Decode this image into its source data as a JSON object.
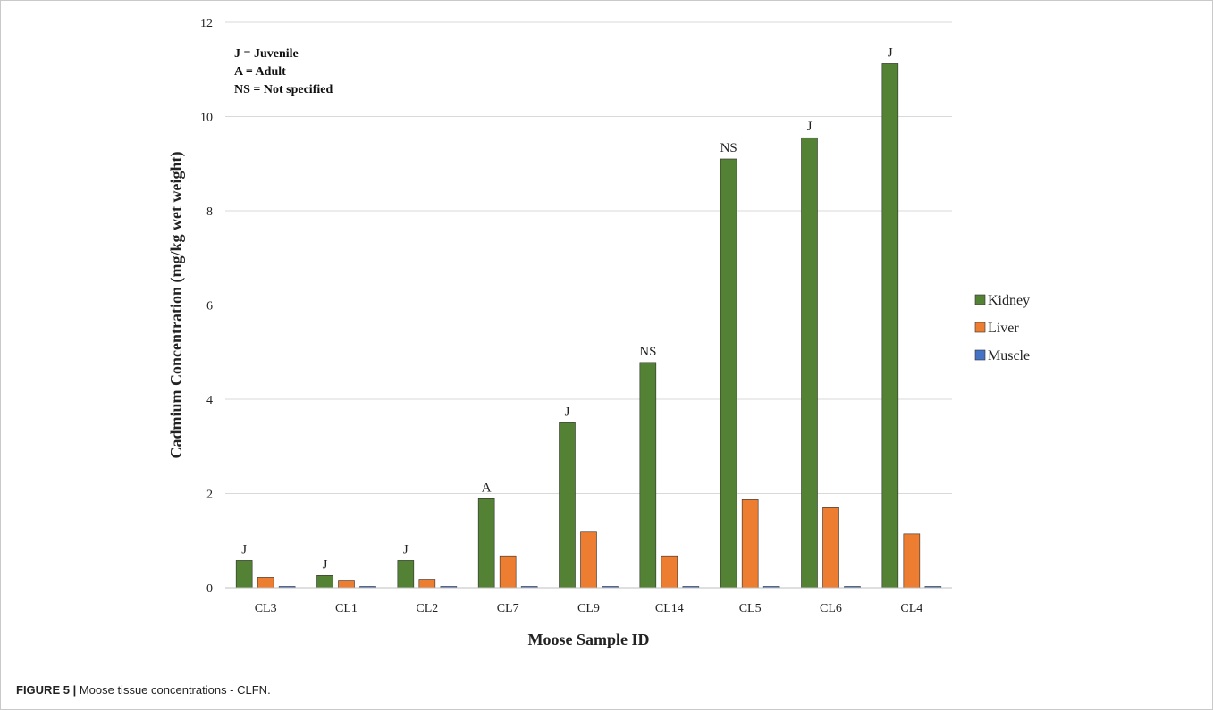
{
  "caption": {
    "label": "FIGURE 5 |",
    "text": " Moose tissue concentrations - CLFN."
  },
  "chart_data": {
    "type": "bar",
    "title": "",
    "xlabel": "Moose Sample ID",
    "ylabel": "Cadmium Concentration (mg/kg wet weight)",
    "ylim": [
      0,
      12
    ],
    "yticks": [
      0,
      2,
      4,
      6,
      8,
      10,
      12
    ],
    "grid": "horizontal",
    "legend_position": "right",
    "categories": [
      "CL3",
      "CL1",
      "CL2",
      "CL7",
      "CL9",
      "CL14",
      "CL5",
      "CL6",
      "CL4"
    ],
    "series": [
      {
        "name": "Kidney",
        "color": "#548235",
        "values": [
          0.58,
          0.26,
          0.58,
          1.89,
          3.5,
          4.78,
          9.1,
          9.55,
          11.12
        ]
      },
      {
        "name": "Liver",
        "color": "#ed7d31",
        "values": [
          0.22,
          0.16,
          0.18,
          0.66,
          1.18,
          0.66,
          1.87,
          1.7,
          1.14
        ]
      },
      {
        "name": "Muscle",
        "color": "#4472c4",
        "values": [
          0.01,
          0.01,
          0.01,
          0.01,
          0.01,
          0.01,
          0.01,
          0.01,
          0.01
        ]
      }
    ],
    "bar_labels": [
      "J",
      "J",
      "J",
      "A",
      "J",
      "NS",
      "NS",
      "J",
      "J"
    ],
    "annotations": [
      "J = Juvenile",
      "A = Adult",
      "NS = Not specified"
    ]
  }
}
